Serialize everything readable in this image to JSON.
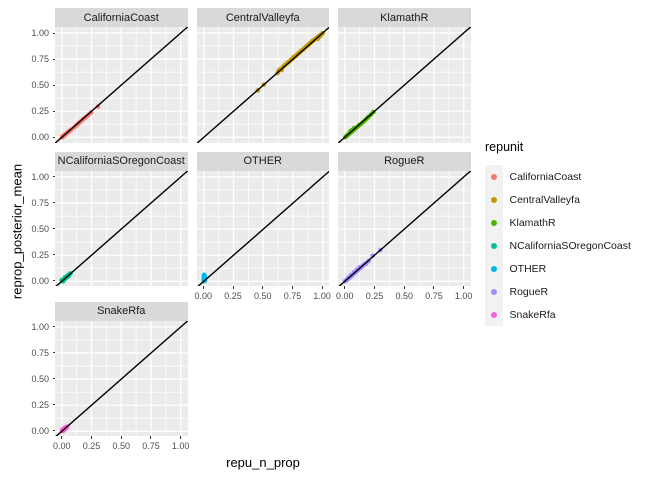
{
  "axis": {
    "x_title": "repu_n_prop",
    "y_title": "reprop_posterior_mean",
    "x_tick_labels": [
      "0.00",
      "0.25",
      "0.50",
      "0.75",
      "1.00"
    ],
    "y_tick_labels": [
      "1.00",
      "0.75",
      "0.50",
      "0.25",
      "0.00"
    ]
  },
  "legend": {
    "title": "repunit",
    "entries": [
      {
        "label": "CaliforniaCoast",
        "color": "#F8766D"
      },
      {
        "label": "CentralValleyfa",
        "color": "#C49A00"
      },
      {
        "label": "KlamathR",
        "color": "#53B400"
      },
      {
        "label": "NCaliforniaSOregonCoast",
        "color": "#00C094"
      },
      {
        "label": "OTHER",
        "color": "#00B6EB"
      },
      {
        "label": "RogueR",
        "color": "#A58AFF"
      },
      {
        "label": "SnakeRfa",
        "color": "#FB61D7"
      }
    ]
  },
  "colors": {
    "panel_bg": "#EBEBEB",
    "strip_bg": "#D9D9D9",
    "gridline": "#FFFFFF",
    "abline": "#000000",
    "tick_text": "#4D4D4D"
  },
  "chart_data": {
    "type": "scatter",
    "title": "",
    "xlabel": "repu_n_prop",
    "ylabel": "reprop_posterior_mean",
    "x_ticks": [
      0,
      0.25,
      0.5,
      0.75,
      1.0
    ],
    "y_ticks": [
      0,
      0.25,
      0.5,
      0.75,
      1.0
    ],
    "xlim": [
      0,
      1
    ],
    "ylim": [
      0,
      1
    ],
    "grid": "on",
    "legend_position": "right",
    "abline": {
      "slope": 1,
      "intercept": 0
    },
    "facet_columns": 3,
    "facets": [
      {
        "name": "CaliforniaCoast",
        "color": "#F8766D",
        "points": [
          [
            0.002,
            0.0
          ],
          [
            0.005,
            0.004
          ],
          [
            0.008,
            0.01
          ],
          [
            0.012,
            0.008
          ],
          [
            0.015,
            0.014
          ],
          [
            0.018,
            0.02
          ],
          [
            0.022,
            0.018
          ],
          [
            0.025,
            0.024
          ],
          [
            0.03,
            0.027
          ],
          [
            0.033,
            0.032
          ],
          [
            0.038,
            0.035
          ],
          [
            0.042,
            0.04
          ],
          [
            0.047,
            0.044
          ],
          [
            0.052,
            0.05
          ],
          [
            0.058,
            0.054
          ],
          [
            0.065,
            0.06
          ],
          [
            0.072,
            0.068
          ],
          [
            0.08,
            0.075
          ],
          [
            0.105,
            0.095
          ],
          [
            0.115,
            0.108
          ],
          [
            0.125,
            0.118
          ],
          [
            0.135,
            0.128
          ],
          [
            0.145,
            0.138
          ],
          [
            0.155,
            0.148
          ],
          [
            0.165,
            0.158
          ],
          [
            0.175,
            0.17
          ],
          [
            0.185,
            0.178
          ],
          [
            0.195,
            0.188
          ],
          [
            0.21,
            0.2
          ],
          [
            0.225,
            0.215
          ],
          [
            0.245,
            0.235
          ],
          [
            0.305,
            0.295
          ]
        ]
      },
      {
        "name": "CentralValleyfa",
        "color": "#C49A00",
        "points": [
          [
            0.455,
            0.45
          ],
          [
            0.505,
            0.505
          ],
          [
            0.62,
            0.615
          ],
          [
            0.63,
            0.64
          ],
          [
            0.645,
            0.655
          ],
          [
            0.655,
            0.645
          ],
          [
            0.67,
            0.68
          ],
          [
            0.685,
            0.695
          ],
          [
            0.7,
            0.71
          ],
          [
            0.71,
            0.72
          ],
          [
            0.72,
            0.725
          ],
          [
            0.73,
            0.74
          ],
          [
            0.74,
            0.75
          ],
          [
            0.75,
            0.755
          ],
          [
            0.755,
            0.77
          ],
          [
            0.765,
            0.775
          ],
          [
            0.775,
            0.78
          ],
          [
            0.785,
            0.795
          ],
          [
            0.795,
            0.805
          ],
          [
            0.805,
            0.81
          ],
          [
            0.815,
            0.825
          ],
          [
            0.825,
            0.835
          ],
          [
            0.835,
            0.84
          ],
          [
            0.845,
            0.855
          ],
          [
            0.855,
            0.865
          ],
          [
            0.865,
            0.87
          ],
          [
            0.875,
            0.885
          ],
          [
            0.885,
            0.89
          ],
          [
            0.895,
            0.905
          ],
          [
            0.905,
            0.91
          ],
          [
            0.915,
            0.925
          ],
          [
            0.925,
            0.93
          ],
          [
            0.935,
            0.94
          ],
          [
            0.945,
            0.95
          ],
          [
            0.955,
            0.958
          ],
          [
            0.965,
            0.968
          ],
          [
            0.975,
            0.976
          ],
          [
            0.985,
            0.984
          ],
          [
            0.995,
            0.993
          ],
          [
            1.0,
            1.0
          ],
          [
            0.96,
            0.945
          ],
          [
            0.98,
            0.97
          ]
        ]
      },
      {
        "name": "KlamathR",
        "color": "#53B400",
        "points": [
          [
            0.004,
            0.0
          ],
          [
            0.008,
            0.006
          ],
          [
            0.012,
            0.01
          ],
          [
            0.018,
            0.014
          ],
          [
            0.022,
            0.02
          ],
          [
            0.028,
            0.024
          ],
          [
            0.032,
            0.03
          ],
          [
            0.038,
            0.034
          ],
          [
            0.042,
            0.04
          ],
          [
            0.05,
            0.045
          ],
          [
            0.055,
            0.052
          ],
          [
            0.062,
            0.058
          ],
          [
            0.07,
            0.065
          ],
          [
            0.078,
            0.072
          ],
          [
            0.085,
            0.08
          ],
          [
            0.095,
            0.09
          ],
          [
            0.105,
            0.1
          ],
          [
            0.045,
            0.055
          ],
          [
            0.06,
            0.07
          ],
          [
            0.08,
            0.09
          ],
          [
            0.115,
            0.11
          ],
          [
            0.125,
            0.12
          ],
          [
            0.14,
            0.132
          ],
          [
            0.155,
            0.148
          ],
          [
            0.17,
            0.163
          ],
          [
            0.185,
            0.18
          ],
          [
            0.2,
            0.197
          ],
          [
            0.22,
            0.218
          ],
          [
            0.24,
            0.242
          ]
        ]
      },
      {
        "name": "NCaliforniaSOregonCoast",
        "color": "#00C094",
        "points": [
          [
            0.0,
            0.002
          ],
          [
            0.004,
            0.008
          ],
          [
            0.008,
            0.004
          ],
          [
            0.01,
            0.014
          ],
          [
            0.014,
            0.01
          ],
          [
            0.016,
            0.02
          ],
          [
            0.02,
            0.016
          ],
          [
            0.022,
            0.026
          ],
          [
            0.026,
            0.022
          ],
          [
            0.03,
            0.034
          ],
          [
            0.034,
            0.03
          ],
          [
            0.038,
            0.042
          ],
          [
            0.042,
            0.038
          ],
          [
            0.046,
            0.05
          ],
          [
            0.05,
            0.046
          ],
          [
            0.055,
            0.06
          ],
          [
            0.06,
            0.056
          ],
          [
            0.066,
            0.07
          ],
          [
            0.072,
            0.076
          ],
          [
            0.012,
            0.0
          ],
          [
            0.0,
            0.012
          ],
          [
            0.028,
            0.04
          ]
        ]
      },
      {
        "name": "OTHER",
        "color": "#00B6EB",
        "points": [
          [
            0.0,
            0.0
          ],
          [
            0.002,
            0.008
          ],
          [
            0.0,
            0.016
          ],
          [
            0.004,
            0.024
          ],
          [
            0.001,
            0.032
          ],
          [
            0.005,
            0.04
          ],
          [
            0.002,
            0.048
          ],
          [
            0.006,
            0.055
          ],
          [
            0.003,
            0.062
          ],
          [
            0.008,
            0.018
          ],
          [
            0.007,
            0.035
          ],
          [
            0.009,
            0.005
          ],
          [
            0.004,
            0.012
          ],
          [
            0.006,
            0.028
          ],
          [
            0.01,
            0.045
          ]
        ]
      },
      {
        "name": "RogueR",
        "color": "#A58AFF",
        "points": [
          [
            0.002,
            0.0
          ],
          [
            0.006,
            0.005
          ],
          [
            0.012,
            0.01
          ],
          [
            0.018,
            0.015
          ],
          [
            0.024,
            0.02
          ],
          [
            0.03,
            0.026
          ],
          [
            0.036,
            0.032
          ],
          [
            0.042,
            0.038
          ],
          [
            0.048,
            0.044
          ],
          [
            0.054,
            0.05
          ],
          [
            0.06,
            0.057
          ],
          [
            0.066,
            0.063
          ],
          [
            0.072,
            0.07
          ],
          [
            0.08,
            0.076
          ],
          [
            0.088,
            0.084
          ],
          [
            0.095,
            0.092
          ],
          [
            0.103,
            0.1
          ],
          [
            0.11,
            0.108
          ],
          [
            0.118,
            0.115
          ],
          [
            0.127,
            0.124
          ],
          [
            0.135,
            0.132
          ],
          [
            0.143,
            0.14
          ],
          [
            0.152,
            0.15
          ],
          [
            0.16,
            0.158
          ],
          [
            0.17,
            0.166
          ],
          [
            0.028,
            0.035
          ],
          [
            0.05,
            0.06
          ],
          [
            0.075,
            0.085
          ],
          [
            0.1,
            0.11
          ],
          [
            0.125,
            0.135
          ],
          [
            0.18,
            0.172
          ],
          [
            0.2,
            0.195
          ],
          [
            0.235,
            0.245
          ],
          [
            0.3,
            0.3
          ]
        ]
      },
      {
        "name": "SnakeRfa",
        "color": "#FB61D7",
        "points": [
          [
            0.0,
            0.0
          ],
          [
            0.004,
            0.006
          ],
          [
            0.008,
            0.003
          ],
          [
            0.01,
            0.012
          ],
          [
            0.014,
            0.008
          ],
          [
            0.016,
            0.018
          ],
          [
            0.02,
            0.014
          ],
          [
            0.022,
            0.024
          ],
          [
            0.026,
            0.02
          ],
          [
            0.03,
            0.032
          ],
          [
            0.034,
            0.028
          ],
          [
            0.038,
            0.04
          ],
          [
            0.042,
            0.036
          ],
          [
            0.046,
            0.044
          ],
          [
            0.005,
            0.015
          ],
          [
            0.015,
            0.025
          ],
          [
            0.025,
            0.035
          ]
        ]
      }
    ]
  }
}
